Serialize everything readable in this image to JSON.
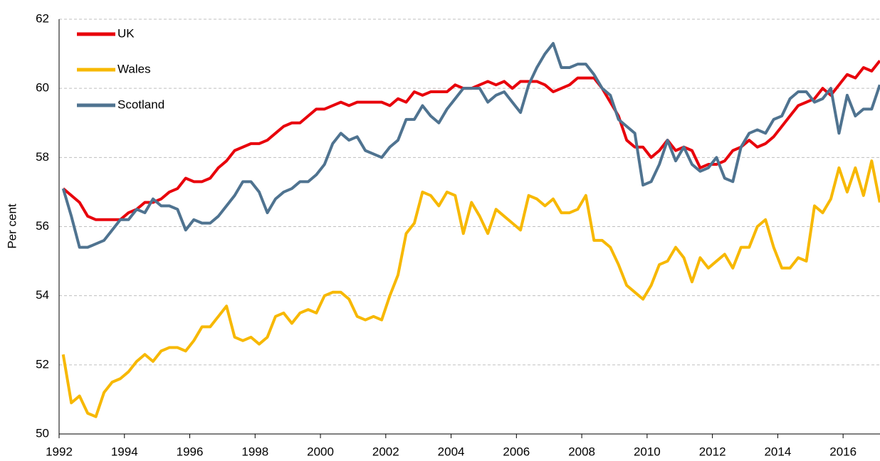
{
  "chart_data": {
    "type": "line",
    "ylabel": "Per cent",
    "x": [
      1992.125,
      1992.375,
      1992.625,
      1992.875,
      1993.125,
      1993.375,
      1993.625,
      1993.875,
      1994.125,
      1994.375,
      1994.625,
      1994.875,
      1995.125,
      1995.375,
      1995.625,
      1995.875,
      1996.125,
      1996.375,
      1996.625,
      1996.875,
      1997.125,
      1997.375,
      1997.625,
      1997.875,
      1998.125,
      1998.375,
      1998.625,
      1998.875,
      1999.125,
      1999.375,
      1999.625,
      1999.875,
      2000.125,
      2000.375,
      2000.625,
      2000.875,
      2001.125,
      2001.375,
      2001.625,
      2001.875,
      2002.125,
      2002.375,
      2002.625,
      2002.875,
      2003.125,
      2003.375,
      2003.625,
      2003.875,
      2004.125,
      2004.375,
      2004.625,
      2004.875,
      2005.125,
      2005.375,
      2005.625,
      2005.875,
      2006.125,
      2006.375,
      2006.625,
      2006.875,
      2007.125,
      2007.375,
      2007.625,
      2007.875,
      2008.125,
      2008.375,
      2008.625,
      2008.875,
      2009.125,
      2009.375,
      2009.625,
      2009.875,
      2010.125,
      2010.375,
      2010.625,
      2010.875,
      2011.125,
      2011.375,
      2011.625,
      2011.875,
      2012.125,
      2012.375,
      2012.625,
      2012.875,
      2013.125,
      2013.375,
      2013.625,
      2013.875,
      2014.125,
      2014.375,
      2014.625,
      2014.875,
      2015.125,
      2015.375,
      2015.625,
      2015.875,
      2016.125,
      2016.375,
      2016.625,
      2016.875,
      2017.125
    ],
    "series": [
      {
        "name": "UK",
        "color": "#e8000b",
        "values": [
          57.1,
          56.9,
          56.7,
          56.3,
          56.2,
          56.2,
          56.2,
          56.2,
          56.4,
          56.5,
          56.7,
          56.7,
          56.8,
          57.0,
          57.1,
          57.4,
          57.3,
          57.3,
          57.4,
          57.7,
          57.9,
          58.2,
          58.3,
          58.4,
          58.4,
          58.5,
          58.7,
          58.9,
          59.0,
          59.0,
          59.2,
          59.4,
          59.4,
          59.5,
          59.6,
          59.5,
          59.6,
          59.6,
          59.6,
          59.6,
          59.5,
          59.7,
          59.6,
          59.9,
          59.8,
          59.9,
          59.9,
          59.9,
          60.1,
          60.0,
          60.0,
          60.1,
          60.2,
          60.1,
          60.2,
          60.0,
          60.2,
          60.2,
          60.2,
          60.1,
          59.9,
          60.0,
          60.1,
          60.3,
          60.3,
          60.3,
          60.0,
          59.6,
          59.2,
          58.5,
          58.3,
          58.3,
          58.0,
          58.2,
          58.5,
          58.2,
          58.3,
          58.2,
          57.7,
          57.8,
          57.8,
          57.9,
          58.2,
          58.3,
          58.5,
          58.3,
          58.4,
          58.6,
          58.9,
          59.2,
          59.5,
          59.6,
          59.7,
          60.0,
          59.8,
          60.1,
          60.4,
          60.3,
          60.6,
          60.5,
          60.8
        ]
      },
      {
        "name": "Wales",
        "color": "#f7b800",
        "values": [
          52.3,
          50.9,
          51.1,
          50.6,
          50.5,
          51.2,
          51.5,
          51.6,
          51.8,
          52.1,
          52.3,
          52.1,
          52.4,
          52.5,
          52.5,
          52.4,
          52.7,
          53.1,
          53.1,
          53.4,
          53.7,
          52.8,
          52.7,
          52.8,
          52.6,
          52.8,
          53.4,
          53.5,
          53.2,
          53.5,
          53.6,
          53.5,
          54.0,
          54.1,
          54.1,
          53.9,
          53.4,
          53.3,
          53.4,
          53.3,
          54.0,
          54.6,
          55.8,
          56.1,
          57.0,
          56.9,
          56.6,
          57.0,
          56.9,
          55.8,
          56.7,
          56.3,
          55.8,
          56.5,
          56.3,
          56.1,
          55.9,
          56.9,
          56.8,
          56.6,
          56.8,
          56.4,
          56.4,
          56.5,
          56.9,
          55.6,
          55.6,
          55.4,
          54.9,
          54.3,
          54.1,
          53.9,
          54.3,
          54.9,
          55.0,
          55.4,
          55.1,
          54.4,
          55.1,
          54.8,
          55.0,
          55.2,
          54.8,
          55.4,
          55.4,
          56.0,
          56.2,
          55.4,
          54.8,
          54.8,
          55.1,
          55.0,
          56.6,
          56.4,
          56.8,
          57.7,
          57.0,
          57.7,
          56.9,
          57.9,
          56.7
        ]
      },
      {
        "name": "Scotland",
        "color": "#4f7390",
        "values": [
          57.1,
          56.3,
          55.4,
          55.4,
          55.5,
          55.6,
          55.9,
          56.2,
          56.2,
          56.5,
          56.4,
          56.8,
          56.6,
          56.6,
          56.5,
          55.9,
          56.2,
          56.1,
          56.1,
          56.3,
          56.6,
          56.9,
          57.3,
          57.3,
          57.0,
          56.4,
          56.8,
          57.0,
          57.1,
          57.3,
          57.3,
          57.5,
          57.8,
          58.4,
          58.7,
          58.5,
          58.6,
          58.2,
          58.1,
          58.0,
          58.3,
          58.5,
          59.1,
          59.1,
          59.5,
          59.2,
          59.0,
          59.4,
          59.7,
          60.0,
          60.0,
          60.0,
          59.6,
          59.8,
          59.9,
          59.6,
          59.3,
          60.1,
          60.6,
          61.0,
          61.3,
          60.6,
          60.6,
          60.7,
          60.7,
          60.4,
          60.0,
          59.8,
          59.1,
          58.9,
          58.7,
          57.2,
          57.3,
          57.8,
          58.5,
          57.9,
          58.3,
          57.8,
          57.6,
          57.7,
          58.0,
          57.4,
          57.3,
          58.3,
          58.7,
          58.8,
          58.7,
          59.1,
          59.2,
          59.7,
          59.9,
          59.9,
          59.6,
          59.7,
          60.0,
          58.7,
          59.8,
          59.2,
          59.4,
          59.4,
          60.1
        ]
      }
    ],
    "xlim": [
      1992,
      2017.13
    ],
    "xticks": [
      1992,
      1994,
      1996,
      1998,
      2000,
      2002,
      2004,
      2006,
      2008,
      2010,
      2012,
      2014,
      2016
    ],
    "ylim": [
      50,
      62
    ],
    "yticks": [
      50,
      52,
      54,
      56,
      58,
      60,
      62
    ],
    "grid": true
  }
}
